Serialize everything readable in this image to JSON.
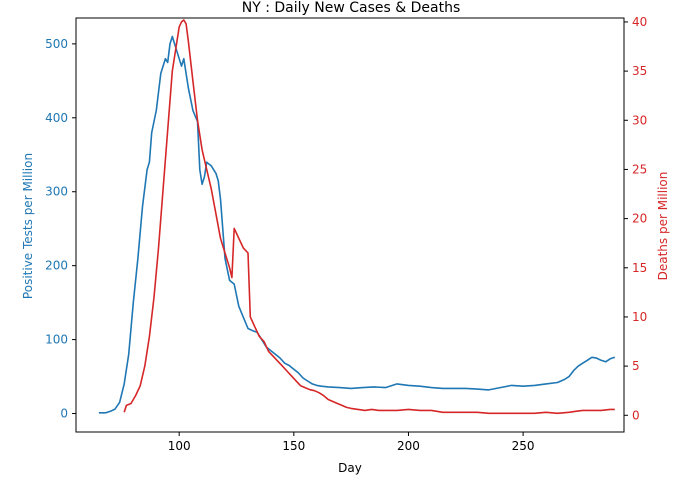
{
  "chart_data": {
    "type": "line",
    "title": "NY : Daily New Cases & Deaths",
    "xlabel": "Day",
    "xlim": [
      55,
      294
    ],
    "x_ticks": [
      100,
      150,
      200,
      250
    ],
    "grid": false,
    "left_axis": {
      "label": "Positive Tests per Million",
      "color": "#1f77b4",
      "ylim": [
        -25,
        535
      ],
      "ticks": [
        0,
        100,
        200,
        300,
        400,
        500
      ]
    },
    "right_axis": {
      "label": "Deaths per Million",
      "color": "#d62728",
      "ylim": [
        -1.7,
        40.4
      ],
      "ticks": [
        0,
        5,
        10,
        15,
        20,
        25,
        30,
        35,
        40
      ]
    },
    "series": [
      {
        "axis": "left",
        "color": "#1f77b4",
        "points": [
          [
            65,
            1
          ],
          [
            68,
            1
          ],
          [
            70,
            3
          ],
          [
            72,
            6
          ],
          [
            74,
            15
          ],
          [
            76,
            40
          ],
          [
            78,
            80
          ],
          [
            80,
            150
          ],
          [
            82,
            210
          ],
          [
            84,
            280
          ],
          [
            86,
            330
          ],
          [
            87,
            340
          ],
          [
            88,
            380
          ],
          [
            90,
            410
          ],
          [
            92,
            460
          ],
          [
            94,
            480
          ],
          [
            95,
            475
          ],
          [
            96,
            500
          ],
          [
            97,
            510
          ],
          [
            98,
            500
          ],
          [
            99,
            490
          ],
          [
            100,
            480
          ],
          [
            101,
            470
          ],
          [
            102,
            480
          ],
          [
            104,
            440
          ],
          [
            106,
            410
          ],
          [
            108,
            395
          ],
          [
            109,
            330
          ],
          [
            110,
            310
          ],
          [
            111,
            320
          ],
          [
            112,
            340
          ],
          [
            114,
            335
          ],
          [
            116,
            325
          ],
          [
            117,
            315
          ],
          [
            118,
            290
          ],
          [
            120,
            210
          ],
          [
            122,
            180
          ],
          [
            124,
            175
          ],
          [
            126,
            145
          ],
          [
            128,
            130
          ],
          [
            130,
            115
          ],
          [
            132,
            112
          ],
          [
            134,
            110
          ],
          [
            136,
            100
          ],
          [
            138,
            90
          ],
          [
            140,
            85
          ],
          [
            142,
            80
          ],
          [
            144,
            75
          ],
          [
            146,
            68
          ],
          [
            148,
            65
          ],
          [
            150,
            60
          ],
          [
            152,
            55
          ],
          [
            154,
            48
          ],
          [
            156,
            44
          ],
          [
            158,
            40
          ],
          [
            160,
            38
          ],
          [
            162,
            37
          ],
          [
            165,
            36
          ],
          [
            170,
            35
          ],
          [
            175,
            34
          ],
          [
            180,
            35
          ],
          [
            185,
            36
          ],
          [
            190,
            35
          ],
          [
            195,
            40
          ],
          [
            200,
            38
          ],
          [
            205,
            37
          ],
          [
            210,
            35
          ],
          [
            215,
            34
          ],
          [
            220,
            34
          ],
          [
            225,
            34
          ],
          [
            230,
            33
          ],
          [
            235,
            32
          ],
          [
            240,
            35
          ],
          [
            245,
            38
          ],
          [
            250,
            37
          ],
          [
            255,
            38
          ],
          [
            260,
            40
          ],
          [
            265,
            42
          ],
          [
            268,
            46
          ],
          [
            270,
            50
          ],
          [
            272,
            58
          ],
          [
            274,
            64
          ],
          [
            276,
            68
          ],
          [
            278,
            72
          ],
          [
            280,
            76
          ],
          [
            282,
            75
          ],
          [
            284,
            72
          ],
          [
            286,
            70
          ],
          [
            288,
            74
          ],
          [
            290,
            76
          ]
        ]
      },
      {
        "axis": "right",
        "color": "#d62728",
        "points": [
          [
            76,
            0.3
          ],
          [
            77,
            1
          ],
          [
            79,
            1.2
          ],
          [
            81,
            2
          ],
          [
            83,
            3
          ],
          [
            85,
            5
          ],
          [
            87,
            8
          ],
          [
            89,
            12
          ],
          [
            91,
            17
          ],
          [
            93,
            23
          ],
          [
            95,
            29
          ],
          [
            97,
            35
          ],
          [
            99,
            38
          ],
          [
            100,
            39.5
          ],
          [
            101,
            40
          ],
          [
            102,
            40.2
          ],
          [
            103,
            39.8
          ],
          [
            104,
            38
          ],
          [
            106,
            34
          ],
          [
            108,
            30
          ],
          [
            110,
            27
          ],
          [
            112,
            25
          ],
          [
            114,
            23
          ],
          [
            116,
            20.5
          ],
          [
            118,
            18
          ],
          [
            120,
            16.5
          ],
          [
            122,
            15
          ],
          [
            123,
            14
          ],
          [
            124,
            19
          ],
          [
            126,
            18
          ],
          [
            128,
            17
          ],
          [
            130,
            16.5
          ],
          [
            131,
            10
          ],
          [
            133,
            9
          ],
          [
            135,
            8
          ],
          [
            137,
            7.5
          ],
          [
            139,
            6.5
          ],
          [
            141,
            6
          ],
          [
            143,
            5.5
          ],
          [
            145,
            5
          ],
          [
            147,
            4.5
          ],
          [
            149,
            4
          ],
          [
            151,
            3.5
          ],
          [
            153,
            3
          ],
          [
            155,
            2.8
          ],
          [
            157,
            2.6
          ],
          [
            159,
            2.5
          ],
          [
            161,
            2.3
          ],
          [
            163,
            2
          ],
          [
            165,
            1.6
          ],
          [
            167,
            1.4
          ],
          [
            169,
            1.2
          ],
          [
            171,
            1
          ],
          [
            173,
            0.8
          ],
          [
            175,
            0.7
          ],
          [
            178,
            0.6
          ],
          [
            181,
            0.5
          ],
          [
            184,
            0.6
          ],
          [
            187,
            0.5
          ],
          [
            190,
            0.5
          ],
          [
            195,
            0.5
          ],
          [
            200,
            0.6
          ],
          [
            205,
            0.5
          ],
          [
            210,
            0.5
          ],
          [
            215,
            0.3
          ],
          [
            220,
            0.3
          ],
          [
            225,
            0.3
          ],
          [
            230,
            0.3
          ],
          [
            235,
            0.2
          ],
          [
            240,
            0.2
          ],
          [
            245,
            0.2
          ],
          [
            250,
            0.2
          ],
          [
            255,
            0.2
          ],
          [
            260,
            0.3
          ],
          [
            265,
            0.2
          ],
          [
            270,
            0.3
          ],
          [
            273,
            0.4
          ],
          [
            276,
            0.5
          ],
          [
            280,
            0.5
          ],
          [
            284,
            0.5
          ],
          [
            288,
            0.6
          ],
          [
            290,
            0.6
          ]
        ]
      }
    ]
  }
}
